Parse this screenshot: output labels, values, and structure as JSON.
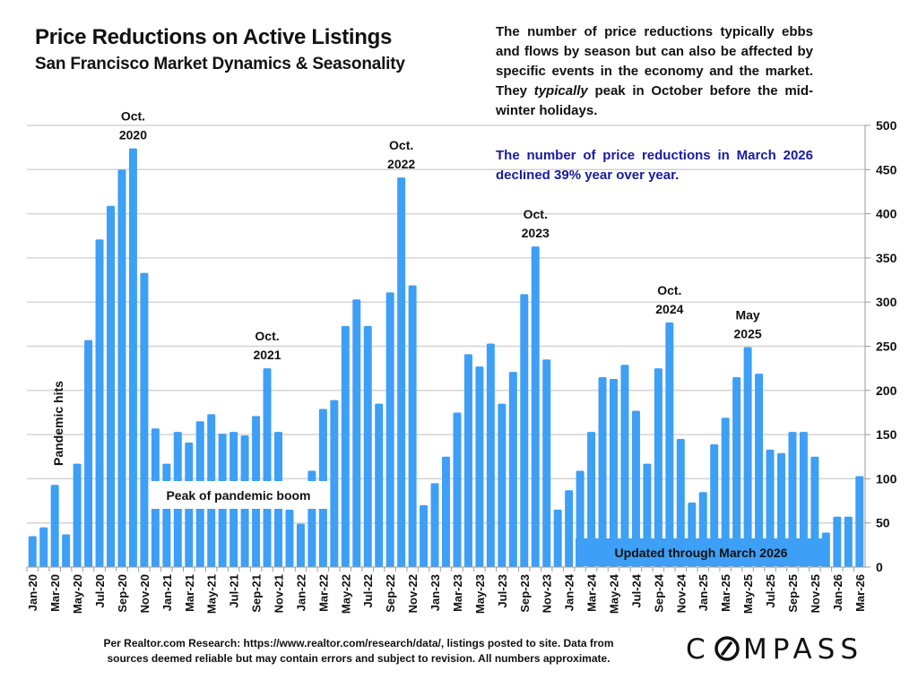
{
  "header": {
    "title": "Price Reductions on Active Listings",
    "subtitle": "San Francisco Market Dynamics & Seasonality"
  },
  "notes": {
    "paragraph_pre": "The number of price reductions typically ebbs and flows by season but can also be affected by specific events in the economy and the market. They ",
    "paragraph_italic": "typically",
    "paragraph_post": " peak in October before the mid-winter holidays.",
    "highlight": "The number of price reductions in March 2026 declined 39% year over year.",
    "highlight_color": "#1a1aa0"
  },
  "footer": {
    "line1": "Per Realtor.com Research:  https://www.realtor.com/research/data/, listings posted to site. Data from",
    "line2": "sources deemed reliable but may contain errors and subject to revision. All numbers approximate."
  },
  "logo": {
    "text": "COMPASS"
  },
  "chart_data": {
    "type": "bar",
    "title": "Price Reductions on Active Listings",
    "subtitle": "San Francisco Market Dynamics & Seasonality",
    "xlabel": "",
    "ylabel": "",
    "ylim": [
      0,
      500
    ],
    "yticks": [
      0,
      50,
      100,
      150,
      200,
      250,
      300,
      350,
      400,
      450,
      500
    ],
    "y_axis_side": "right",
    "grid": true,
    "bar_color": "#3d9ff5",
    "categories": [
      "Jan-20",
      "Feb-20",
      "Mar-20",
      "Apr-20",
      "May-20",
      "Jun-20",
      "Jul-20",
      "Aug-20",
      "Sep-20",
      "Oct-20",
      "Nov-20",
      "Dec-20",
      "Jan-21",
      "Feb-21",
      "Mar-21",
      "Apr-21",
      "May-21",
      "Jun-21",
      "Jul-21",
      "Aug-21",
      "Sep-21",
      "Oct-21",
      "Nov-21",
      "Dec-21",
      "Jan-22",
      "Feb-22",
      "Mar-22",
      "Apr-22",
      "May-22",
      "Jun-22",
      "Jul-22",
      "Aug-22",
      "Sep-22",
      "Oct-22",
      "Nov-22",
      "Dec-22",
      "Jan-23",
      "Feb-23",
      "Mar-23",
      "Apr-23",
      "May-23",
      "Jun-23",
      "Jul-23",
      "Aug-23",
      "Sep-23",
      "Oct-23",
      "Nov-23",
      "Dec-23",
      "Jan-24",
      "Feb-24",
      "Mar-24",
      "Apr-24",
      "May-24",
      "Jun-24",
      "Jul-24",
      "Aug-24",
      "Sep-24",
      "Oct-24",
      "Nov-24",
      "Dec-24",
      "Jan-25",
      "Feb-25",
      "Mar-25",
      "Apr-25",
      "May-25",
      "Jun-25",
      "Jul-25",
      "Aug-25",
      "Sep-25",
      "Oct-25",
      "Nov-25",
      "Dec-25",
      "Jan-26",
      "Feb-26",
      "Mar-26"
    ],
    "values": [
      35,
      45,
      93,
      37,
      117,
      257,
      371,
      409,
      450,
      474,
      333,
      157,
      117,
      153,
      141,
      165,
      173,
      151,
      153,
      149,
      171,
      225,
      153,
      65,
      49,
      109,
      179,
      189,
      273,
      303,
      273,
      185,
      311,
      441,
      319,
      70,
      95,
      125,
      175,
      241,
      227,
      253,
      185,
      221,
      309,
      363,
      235,
      65,
      87,
      109,
      153,
      215,
      213,
      229,
      177,
      117,
      225,
      277,
      145,
      73,
      85,
      139,
      169,
      215,
      249,
      219,
      133,
      129,
      153,
      153,
      125,
      39,
      57,
      57,
      103
    ],
    "visible_tick_labels_every": 2,
    "annotations": [
      {
        "category": "Oct-20",
        "line1": "Oct.",
        "line2": "2020"
      },
      {
        "category": "Oct-21",
        "line1": "Oct.",
        "line2": "2021"
      },
      {
        "category": "Oct-22",
        "line1": "Oct.",
        "line2": "2022"
      },
      {
        "category": "Oct-23",
        "line1": "Oct.",
        "line2": "2023"
      },
      {
        "category": "Oct-24",
        "line1": "Oct.",
        "line2": "2024"
      },
      {
        "category": "May-25",
        "line1": "May",
        "line2": "2025"
      }
    ],
    "side_label": "Pandemic hits",
    "callouts": {
      "peak_label": "Peak of pandemic boom",
      "updated_label": "Updated through March 2026"
    }
  }
}
